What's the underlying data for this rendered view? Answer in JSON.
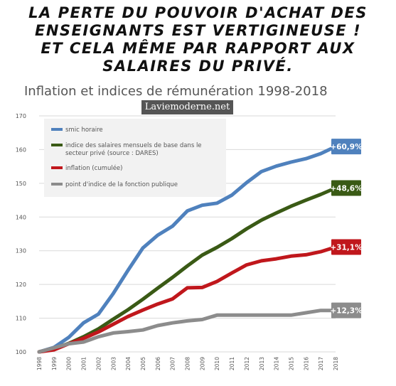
{
  "headline": {
    "lines": [
      "La perte du pouvoir d'achat des",
      "enseignants est vertigineuse !",
      "Et cela même par rapport aux",
      "salaires du privé."
    ]
  },
  "watermark": "Laviemoderne.net",
  "colors": {
    "smic": "#4f81bd",
    "salaires": "#3a5a15",
    "inflation": "#c0171c",
    "point": "#8c8c8c",
    "grid": "#d9d9d9",
    "legend_bg": "#f2f2f2"
  },
  "chart_data": {
    "type": "line",
    "title": "Inflation et indices de rémunération 1998-2018",
    "xlabel": "",
    "ylabel": "",
    "ylim": [
      100,
      170
    ],
    "yticks": [
      100,
      110,
      120,
      130,
      140,
      150,
      160,
      170
    ],
    "grid": true,
    "legend_placement": "top-left",
    "x": [
      "1998",
      "1999",
      "2000",
      "2001",
      "2002",
      "2003",
      "2004",
      "2005",
      "2006",
      "2007",
      "2008",
      "2009",
      "2010",
      "2011",
      "2012",
      "2013",
      "2014",
      "2015",
      "2016",
      "2017",
      "2018"
    ],
    "series": [
      {
        "key": "smic",
        "name": "smic horaire",
        "end_label": "+60,9%",
        "values": [
          100,
          101.3,
          104.3,
          108.6,
          111.2,
          117.3,
          124.2,
          130.8,
          134.6,
          137.3,
          141.8,
          143.5,
          144.1,
          146.5,
          150.2,
          153.5,
          155.1,
          156.3,
          157.3,
          158.8,
          160.9
        ]
      },
      {
        "key": "salaires",
        "name": "indice des salaires mensuels de base dans le secteur privé  (source : DARES)",
        "end_label": "+48,6%",
        "values": [
          100,
          101,
          102.5,
          104.5,
          106.8,
          109.7,
          112.5,
          115.6,
          118.9,
          122.1,
          125.5,
          128.7,
          131,
          133.6,
          136.5,
          139.1,
          141.2,
          143.2,
          145,
          146.7,
          148.6
        ]
      },
      {
        "key": "inflation",
        "name": "inflation (cumulée)",
        "end_label": "+31,1%",
        "values": [
          100,
          100.6,
          102.4,
          104,
          105.9,
          108.2,
          110.5,
          112.4,
          114.2,
          115.7,
          119,
          119.1,
          120.9,
          123.4,
          125.8,
          127,
          127.6,
          128.4,
          128.8,
          129.7,
          131.1
        ]
      },
      {
        "key": "point",
        "name": "point d'indice de la fonction publique",
        "end_label": "+12,3%",
        "values": [
          100,
          101.2,
          102.4,
          102.9,
          104.5,
          105.6,
          106,
          106.5,
          107.8,
          108.6,
          109.2,
          109.6,
          110.9,
          110.9,
          110.9,
          110.9,
          110.9,
          110.9,
          111.6,
          112.3,
          112.3
        ]
      }
    ]
  }
}
